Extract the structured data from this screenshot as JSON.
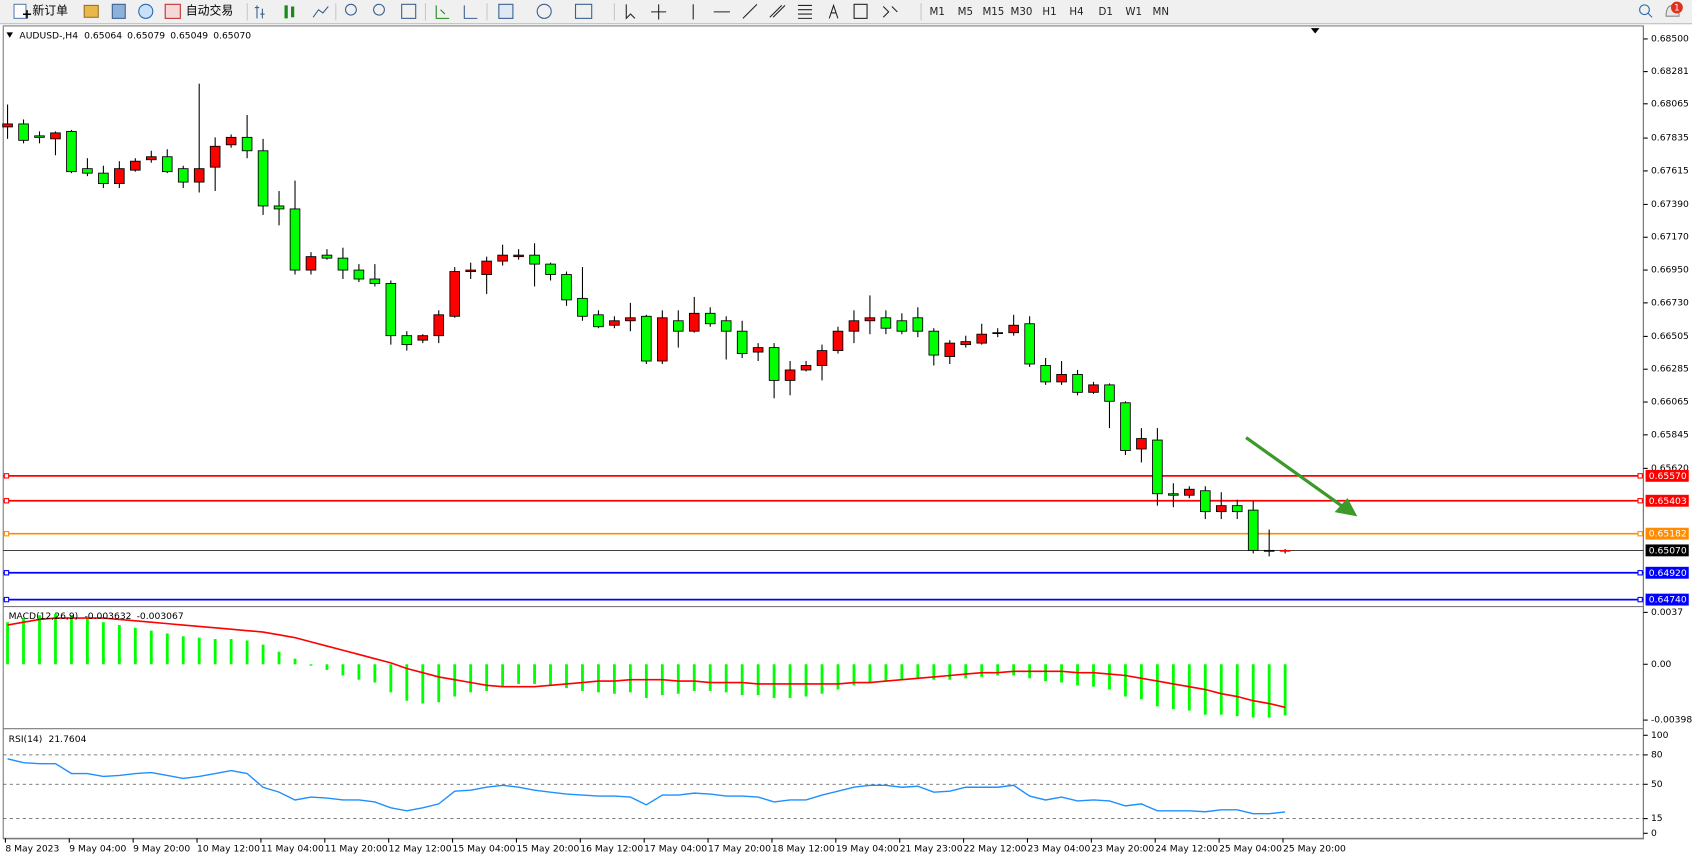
{
  "toolbar": {
    "new_order": "新订单",
    "auto_trading": "自动交易",
    "timeframes": [
      "M1",
      "M5",
      "M15",
      "M30",
      "H1",
      "H4",
      "D1",
      "W1",
      "MN"
    ],
    "notifications": 1
  },
  "chart_data": [
    {
      "type": "candlestick",
      "symbol": "AUDUSD-,H4",
      "ohlc_labels": [
        "0.65064",
        "0.65079",
        "0.65049",
        "0.65070"
      ],
      "categories": [
        "8 May 2023",
        null,
        null,
        null,
        "9 May 04:00",
        null,
        null,
        null,
        "9 May 20:00",
        null,
        null,
        null,
        "10 May 12:00",
        null,
        null,
        null,
        "11 May 04:00",
        null,
        null,
        null,
        "11 May 20:00",
        null,
        null,
        null,
        "12 May 12:00",
        null,
        null,
        null,
        "15 May 04:00",
        null,
        null,
        null,
        "15 May 20:00",
        null,
        null,
        null,
        "16 May 12:00",
        null,
        null,
        null,
        "17 May 04:00",
        null,
        null,
        null,
        "17 May 20:00",
        null,
        null,
        null,
        "18 May 12:00",
        null,
        null,
        null,
        "19 May 04:00",
        null,
        null,
        null,
        "21 May 23:00",
        null,
        null,
        null,
        "22 May 12:00",
        null,
        null,
        null,
        "23 May 04:00",
        null,
        null,
        null,
        "23 May 20:00",
        null,
        null,
        null,
        "24 May 12:00",
        null,
        null,
        null,
        "25 May 04:00",
        null,
        null,
        null,
        "25 May 20:00"
      ],
      "ohlc": [
        [
          0.6791,
          0.6806,
          0.6783,
          0.6793
        ],
        [
          0.6793,
          0.6796,
          0.678,
          0.6782
        ],
        [
          0.6785,
          0.6788,
          0.678,
          0.6784
        ],
        [
          0.6783,
          0.6788,
          0.6772,
          0.6787
        ],
        [
          0.6788,
          0.6789,
          0.676,
          0.6761
        ],
        [
          0.6763,
          0.677,
          0.6758,
          0.676
        ],
        [
          0.676,
          0.6765,
          0.675,
          0.6753
        ],
        [
          0.6753,
          0.6768,
          0.675,
          0.6763
        ],
        [
          0.6762,
          0.677,
          0.6761,
          0.6768
        ],
        [
          0.6769,
          0.6775,
          0.6767,
          0.6771
        ],
        [
          0.6771,
          0.6776,
          0.676,
          0.6761
        ],
        [
          0.6763,
          0.6765,
          0.675,
          0.6754
        ],
        [
          0.6754,
          0.682,
          0.6747,
          0.6763
        ],
        [
          0.6764,
          0.6784,
          0.6748,
          0.6778
        ],
        [
          0.6779,
          0.6786,
          0.6777,
          0.6784
        ],
        [
          0.6784,
          0.6799,
          0.677,
          0.6775
        ],
        [
          0.6775,
          0.6783,
          0.6732,
          0.6738
        ],
        [
          0.6738,
          0.6748,
          0.6725,
          0.6736
        ],
        [
          0.6736,
          0.6755,
          0.6692,
          0.6695
        ],
        [
          0.6695,
          0.6707,
          0.6692,
          0.6704
        ],
        [
          0.6705,
          0.6709,
          0.6702,
          0.6703
        ],
        [
          0.6703,
          0.671,
          0.6689,
          0.6695
        ],
        [
          0.6695,
          0.6699,
          0.6687,
          0.6689
        ],
        [
          0.6689,
          0.6699,
          0.6684,
          0.6686
        ],
        [
          0.6686,
          0.6688,
          0.6645,
          0.6651
        ],
        [
          0.6651,
          0.6654,
          0.6641,
          0.6645
        ],
        [
          0.6648,
          0.6652,
          0.6646,
          0.6651
        ],
        [
          0.6651,
          0.6668,
          0.6646,
          0.6665
        ],
        [
          0.6664,
          0.6697,
          0.6663,
          0.6694
        ],
        [
          0.6694,
          0.67,
          0.6689,
          0.6695
        ],
        [
          0.6692,
          0.6704,
          0.6679,
          0.6701
        ],
        [
          0.6701,
          0.6712,
          0.6698,
          0.6705
        ],
        [
          0.6704,
          0.6709,
          0.6702,
          0.6705
        ],
        [
          0.6705,
          0.6713,
          0.6684,
          0.6699
        ],
        [
          0.6699,
          0.67,
          0.6688,
          0.6692
        ],
        [
          0.6692,
          0.6694,
          0.6671,
          0.6675
        ],
        [
          0.6676,
          0.6697,
          0.6661,
          0.6664
        ],
        [
          0.6665,
          0.6668,
          0.6656,
          0.6657
        ],
        [
          0.6658,
          0.6664,
          0.6656,
          0.6661
        ],
        [
          0.6661,
          0.6673,
          0.6654,
          0.6663
        ],
        [
          0.6664,
          0.6665,
          0.6632,
          0.6634
        ],
        [
          0.6634,
          0.6668,
          0.6632,
          0.6663
        ],
        [
          0.6661,
          0.6668,
          0.6643,
          0.6654
        ],
        [
          0.6654,
          0.6677,
          0.6653,
          0.6666
        ],
        [
          0.6666,
          0.667,
          0.6657,
          0.6659
        ],
        [
          0.6661,
          0.6664,
          0.6635,
          0.6654
        ],
        [
          0.6654,
          0.6661,
          0.6636,
          0.6639
        ],
        [
          0.664,
          0.6646,
          0.6634,
          0.6643
        ],
        [
          0.6643,
          0.6646,
          0.6609,
          0.6621
        ],
        [
          0.6621,
          0.6634,
          0.6611,
          0.6628
        ],
        [
          0.6628,
          0.6634,
          0.6627,
          0.6631
        ],
        [
          0.6631,
          0.6645,
          0.6621,
          0.6641
        ],
        [
          0.6641,
          0.6657,
          0.6639,
          0.6654
        ],
        [
          0.6654,
          0.6668,
          0.6646,
          0.6661
        ],
        [
          0.6661,
          0.6678,
          0.6652,
          0.6663
        ],
        [
          0.6663,
          0.6668,
          0.6652,
          0.6656
        ],
        [
          0.6661,
          0.6666,
          0.6652,
          0.6654
        ],
        [
          0.6663,
          0.667,
          0.665,
          0.6654
        ],
        [
          0.6654,
          0.6656,
          0.6631,
          0.6638
        ],
        [
          0.6637,
          0.6648,
          0.6632,
          0.6646
        ],
        [
          0.6645,
          0.6651,
          0.6643,
          0.6647
        ],
        [
          0.6646,
          0.6659,
          0.6645,
          0.6652
        ],
        [
          0.6653,
          0.6656,
          0.665,
          0.6653
        ],
        [
          0.6653,
          0.6665,
          0.6651,
          0.6658
        ],
        [
          0.6659,
          0.6664,
          0.663,
          0.6632
        ],
        [
          0.6631,
          0.6636,
          0.6618,
          0.662
        ],
        [
          0.662,
          0.6634,
          0.6618,
          0.6625
        ],
        [
          0.6625,
          0.6628,
          0.6611,
          0.6613
        ],
        [
          0.6613,
          0.662,
          0.6612,
          0.6618
        ],
        [
          0.6618,
          0.6619,
          0.6589,
          0.6607
        ],
        [
          0.6606,
          0.6607,
          0.6571,
          0.6574
        ],
        [
          0.6575,
          0.6589,
          0.6566,
          0.6582
        ],
        [
          0.6581,
          0.6589,
          0.6537,
          0.6545
        ],
        [
          0.6545,
          0.6552,
          0.6536,
          0.6544
        ],
        [
          0.6544,
          0.655,
          0.6542,
          0.6548
        ],
        [
          0.6547,
          0.655,
          0.6528,
          0.6533
        ],
        [
          0.6533,
          0.6546,
          0.6528,
          0.6537
        ],
        [
          0.6537,
          0.6541,
          0.6528,
          0.6533
        ],
        [
          0.6534,
          0.654,
          0.6505,
          0.6507
        ],
        [
          0.6507,
          0.6521,
          0.6503,
          0.6507
        ],
        [
          0.65064,
          0.65079,
          0.65049,
          0.6507
        ]
      ],
      "up_color": "#ff0000",
      "down_color": "#00ff00",
      "ylim": [
        0.64704,
        0.6858
      ],
      "yticks": [
        {
          "value": 0.685,
          "label": "0.68500"
        },
        0.68281,
        0.68065,
        0.67835,
        0.67615,
        {
          "value": 0.6739,
          "label": "0.67390"
        },
        {
          "value": 0.6717,
          "label": "0.67170"
        },
        {
          "value": 0.6695,
          "label": "0.66950"
        },
        {
          "value": 0.6673,
          "label": "0.66730"
        },
        0.66505,
        0.66285,
        0.66065,
        0.65845,
        {
          "value": 0.6562,
          "label": "0.65620"
        }
      ],
      "hlines": [
        {
          "value": 0.6557,
          "label": "0.65570",
          "color": "#ff0000"
        },
        {
          "value": 0.65403,
          "label": "0.65403",
          "color": "#ff0000"
        },
        {
          "value": 0.65182,
          "label": "0.65182",
          "color": "#ff8c00"
        },
        {
          "value": 0.6507,
          "label": "0.65070",
          "color": "#000000"
        },
        {
          "value": 0.6492,
          "label": "0.64920",
          "color": "#0000ff"
        },
        {
          "value": 0.6474,
          "label": "0.64740",
          "color": "#0000ff"
        }
      ]
    },
    {
      "type": "macd",
      "name": "MACD(12,26,9)",
      "values": [
        0.003,
        0.0033,
        0.0035,
        0.0036,
        0.0035,
        0.0033,
        0.003,
        0.0028,
        0.0026,
        0.0024,
        0.0022,
        0.002,
        0.0019,
        0.0018,
        0.0018,
        0.0017,
        0.0014,
        0.0009,
        0.0004,
        -0.0001,
        -0.0004,
        -0.0008,
        -0.0011,
        -0.0013,
        -0.002,
        -0.0026,
        -0.0028,
        -0.0027,
        -0.0023,
        -0.002,
        -0.0019,
        -0.0016,
        -0.0014,
        -0.0014,
        -0.0015,
        -0.0017,
        -0.0019,
        -0.002,
        -0.0021,
        -0.002,
        -0.0024,
        -0.0022,
        -0.0021,
        -0.0019,
        -0.0019,
        -0.002,
        -0.0022,
        -0.0022,
        -0.0024,
        -0.0024,
        -0.0023,
        -0.0021,
        -0.0018,
        -0.0015,
        -0.0013,
        -0.0012,
        -0.0011,
        -0.001,
        -0.0011,
        -0.0011,
        -0.001,
        -0.0009,
        -0.0008,
        -0.0008,
        -0.001,
        -0.0012,
        -0.0013,
        -0.0015,
        -0.0016,
        -0.0018,
        -0.0023,
        -0.0025,
        -0.003,
        -0.0032,
        -0.0033,
        -0.0036,
        -0.0036,
        -0.0037,
        -0.0038,
        -0.0038,
        -0.003632
      ],
      "signal": [
        0.0028,
        0.003,
        0.0032,
        0.0033,
        0.0033,
        0.0033,
        0.0033,
        0.0032,
        0.0031,
        0.003,
        0.0029,
        0.0028,
        0.0027,
        0.0026,
        0.0025,
        0.0024,
        0.0023,
        0.0021,
        0.0019,
        0.0016,
        0.0013,
        0.001,
        0.0007,
        0.0004,
        0.0001,
        -0.0003,
        -0.0006,
        -0.0009,
        -0.0011,
        -0.0013,
        -0.0015,
        -0.0016,
        -0.0016,
        -0.0016,
        -0.0015,
        -0.0014,
        -0.0013,
        -0.0012,
        -0.0012,
        -0.0011,
        -0.0011,
        -0.0011,
        -0.0012,
        -0.0012,
        -0.0013,
        -0.0013,
        -0.0013,
        -0.0014,
        -0.0014,
        -0.0014,
        -0.0014,
        -0.0014,
        -0.0014,
        -0.0013,
        -0.0013,
        -0.0012,
        -0.0011,
        -0.001,
        -0.0009,
        -0.0008,
        -0.0007,
        -0.0006,
        -0.0006,
        -0.0005,
        -0.0005,
        -0.0005,
        -0.0005,
        -0.0006,
        -0.0006,
        -0.0007,
        -0.0008,
        -0.001,
        -0.0012,
        -0.0014,
        -0.0016,
        -0.0018,
        -0.0021,
        -0.0023,
        -0.0026,
        -0.0028,
        -0.003067
      ],
      "color": "#00ff00",
      "signal_color": "#ff0000",
      "ylim": [
        -0.0044,
        0.004
      ],
      "yticks": [
        0.0037,
        {
          "value": 0,
          "label": "0.00"
        },
        -0.003981
      ]
    },
    {
      "type": "line",
      "name": "RSI(14)",
      "values": [
        76,
        72,
        71,
        71,
        61,
        61,
        58,
        59,
        61,
        62,
        59,
        56,
        58,
        61,
        64,
        61,
        47,
        42,
        34,
        37,
        36,
        34,
        34,
        32,
        26,
        23,
        26,
        30,
        43,
        44,
        47,
        49,
        47,
        44,
        42,
        40,
        39,
        38,
        38,
        37,
        29,
        39,
        39,
        41,
        40,
        38,
        38,
        37,
        32,
        34,
        34,
        39,
        43,
        47,
        49,
        49,
        47,
        48,
        42,
        43,
        47,
        47,
        47,
        49,
        38,
        34,
        37,
        33,
        34,
        33,
        28,
        30,
        23,
        23,
        23,
        22,
        24,
        24,
        20,
        20,
        21.7604
      ],
      "color": "#1e90ff",
      "ylim": [
        -4,
        104
      ],
      "yticks": [
        100,
        80,
        50,
        15,
        0
      ],
      "levels": [
        80,
        50,
        15
      ]
    }
  ]
}
